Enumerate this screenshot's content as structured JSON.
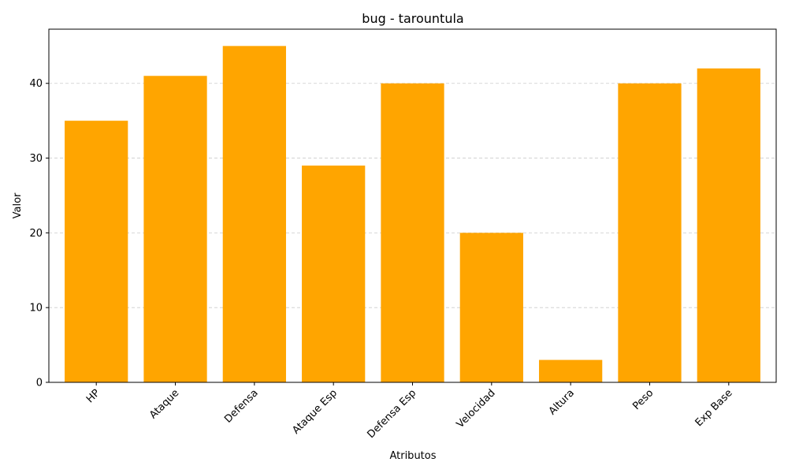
{
  "chart_data": {
    "type": "bar",
    "title": "bug - tarountula",
    "xlabel": "Atributos",
    "ylabel": "Valor",
    "categories": [
      "HP",
      "Ataque",
      "Defensa",
      "Ataque Esp",
      "Defensa Esp",
      "Velocidad",
      "Altura",
      "Peso",
      "Exp Base"
    ],
    "values": [
      35,
      41,
      45,
      29,
      40,
      20,
      3,
      40,
      42
    ],
    "ylim": [
      0,
      47.25
    ],
    "yticks": [
      0,
      10,
      20,
      30,
      40
    ],
    "grid": "y-dashed",
    "bar_color": "#FFA500",
    "grid_color": "#cccccc",
    "x_tick_rotation_deg": 45
  }
}
